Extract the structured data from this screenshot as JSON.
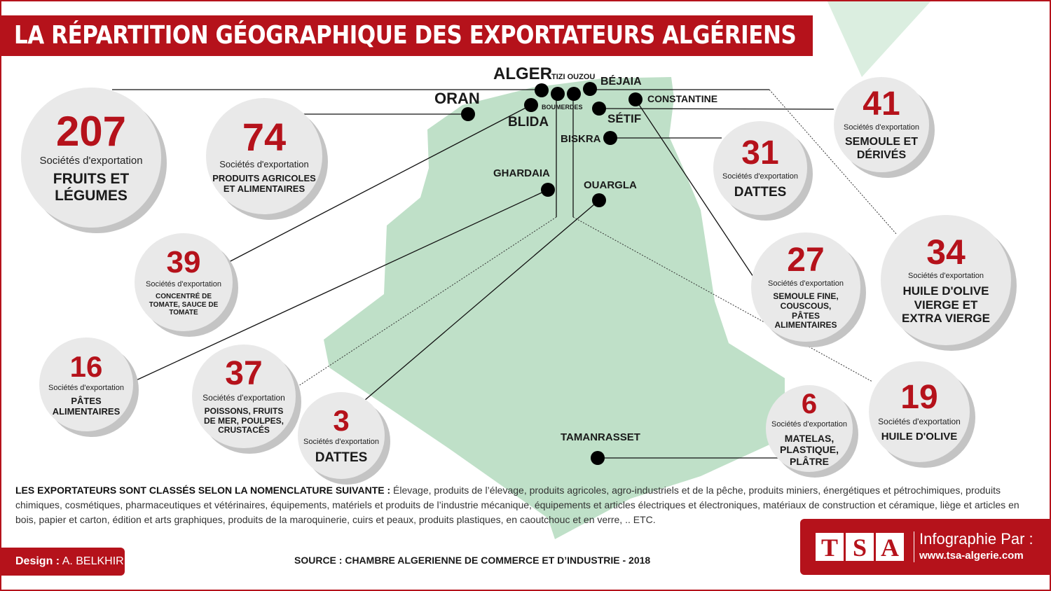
{
  "title": "LA RÉPARTITION GÉOGRAPHIQUE DES EXPORTATEURS ALGÉRIENS",
  "colors": {
    "accent": "#b5121b",
    "map": "#bfe0c8",
    "bubble": "#e9e9e9"
  },
  "cities": {
    "alger": "ALGER",
    "tizi": "TIZI OUZOU",
    "bejaia": "BÉJAIA",
    "oran": "ORAN",
    "constantine": "CONSTANTINE",
    "boumerdes": "BOUMERDES",
    "blida": "BLIDA",
    "setif": "SÉTIF",
    "biskra": "BISKRA",
    "ghardaia": "GHARDAIA",
    "ouargla": "OUARGLA",
    "tamanrasset": "TAMANRASSET"
  },
  "label": "Sociétés d'exportation",
  "bubbles": {
    "alger": {
      "count": "207",
      "category": "FRUITS ET LÉGUMES"
    },
    "oran": {
      "count": "74",
      "category": "PRODUITS AGRICOLES ET ALIMENTAIRES"
    },
    "blida": {
      "count": "39",
      "category": "CONCENTRÉ DE TOMATE, SAUCE DE TOMATE"
    },
    "ghardaia": {
      "count": "16",
      "category": "PÂTES ALIMENTAIRES"
    },
    "boumerdes": {
      "count": "37",
      "category": "POISSONS, FRUITS DE MER, POULPES, CRUSTACÉS"
    },
    "ouargla": {
      "count": "3",
      "category": "DATTES"
    },
    "biskra": {
      "count": "31",
      "category": "DATTES"
    },
    "setif": {
      "count": "41",
      "category": "SEMOULE ET DÉRIVÉS"
    },
    "bejaia": {
      "count": "34",
      "category": "HUILE D'OLIVE VIERGE ET EXTRA VIERGE"
    },
    "constantine": {
      "count": "27",
      "category": "SEMOULE FINE, COUSCOUS, PÂTES ALIMENTAIRES"
    },
    "tizi": {
      "count": "19",
      "category": "HUILE D'OLIVE"
    },
    "tamanrasset": {
      "count": "6",
      "category": "MATELAS, PLASTIQUE, PLÂTRE"
    }
  },
  "legend": {
    "heading": "LES EXPORTATEURS SONT CLASSÉS SELON LA NOMENCLATURE SUIVANTE :",
    "text": " Élevage, produits de l’élevage, produits agricoles, agro-industriels et de la pêche, produits miniers, énergétiques et pétrochimiques, produits chimiques, cosmétiques, pharmaceutiques et vétérinaires, équipements, matériels et produits de l’industrie mécanique, équipements et articles électriques et électroniques, matériaux de construction et céramique, liège et articles en bois, papier et carton, édition et arts graphiques, produits de la maroquinerie, cuirs et peaux, produits plastiques, en caoutchouc et en verre, .. ETC."
  },
  "footer": {
    "design_label": "Design :",
    "designer": " A. BELKHIR",
    "source": "SOURCE : CHAMBRE ALGERIENNE DE COMMERCE ET D’INDUSTRIE - 2018",
    "logo": [
      "T",
      "S",
      "A"
    ],
    "infographie": "Infographie Par :",
    "url": "www.tsa-algerie.com"
  }
}
